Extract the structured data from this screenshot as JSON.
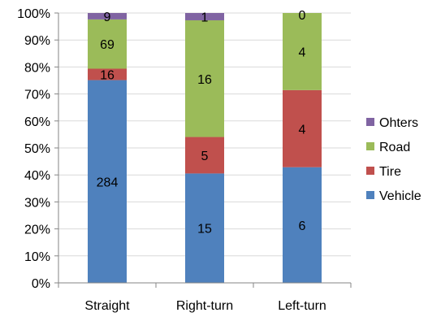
{
  "chart_data": {
    "type": "bar",
    "stacked": true,
    "normalized": true,
    "categories": [
      "Straight",
      "Right-turn",
      "Left-turn"
    ],
    "series": [
      {
        "name": "Vehicle",
        "values": [
          284,
          15,
          6
        ],
        "color": "#4f81bd"
      },
      {
        "name": "Tire",
        "values": [
          16,
          5,
          4
        ],
        "color": "#c0504d"
      },
      {
        "name": "Road",
        "values": [
          69,
          16,
          4
        ],
        "color": "#9bbb59"
      },
      {
        "name": "Ohters",
        "values": [
          9,
          1,
          0
        ],
        "color": "#8064a2"
      }
    ],
    "y_tick_labels": [
      "0%",
      "10%",
      "20%",
      "30%",
      "40%",
      "50%",
      "60%",
      "70%",
      "80%",
      "90%",
      "100%"
    ],
    "ylim": [
      0,
      100
    ],
    "grid": true,
    "legend_position": "right",
    "title": "",
    "xlabel": "",
    "ylabel": ""
  }
}
